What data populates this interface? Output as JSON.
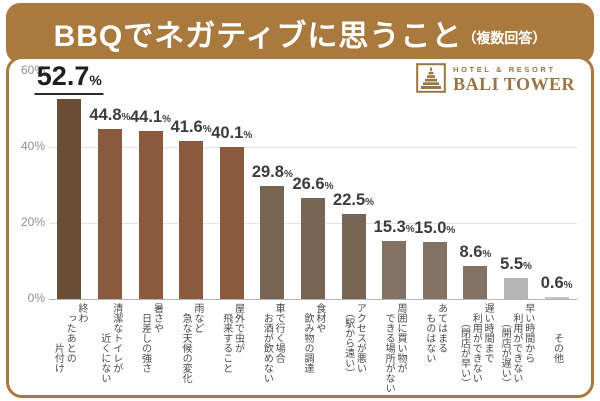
{
  "header": {
    "title": "BBQでネガティブに思うこと",
    "note": "（複数回答）"
  },
  "logo": {
    "tagline": "HOTEL & RESORT",
    "name": "BALI TOWER",
    "color": "#9a7544",
    "icon": "stepped-tower-icon"
  },
  "colors": {
    "banner_brown": "#a9793e",
    "bar_dark_brown": "#6b4c35",
    "bar_medium_brown": "#8a5a3e",
    "bar_taupe": "#786452",
    "bar_light_taupe": "#837264",
    "bar_gray": "#b5b5b4",
    "bar_light_gray": "#c7c4bf"
  },
  "chart_data": {
    "type": "bar",
    "title": "BBQでネガティブに思うこと（複数回答）",
    "unit": "%",
    "ylim": [
      0,
      60
    ],
    "yticks": [
      "0%",
      "20%",
      "40%",
      "60%"
    ],
    "yticks_display": [
      "60%",
      "40%",
      "20%",
      "0%"
    ],
    "grid": "horizontal gridlines at 20% and 40%",
    "legend": "none",
    "categories": [
      "終わったあとの片付け",
      "清潔なトイレが近くにない",
      "暑さや日差しの強さ",
      "雨など急な天候の変化",
      "屋外で虫が飛来すること",
      "車で行く場合お酒が飲めない",
      "食材や飲み物の調達",
      "アクセスが悪い（駅から遠い）",
      "周囲に買い物ができる場所がない",
      "あてはまるものはない",
      "遅い時間まで利用ができない（閉店が早い）",
      "早い時間から利用ができない（開店が遅い）",
      "その他"
    ],
    "values": [
      52.7,
      44.8,
      44.1,
      41.6,
      40.1,
      29.8,
      26.6,
      22.5,
      15.3,
      15.0,
      8.6,
      5.5,
      0.6
    ],
    "bars": [
      {
        "value": "52.7",
        "numeric": 52.7,
        "color": "#6b4c35",
        "emphasis": true,
        "display_label": "終わ\n　ったあとの\n　　　　片付け"
      },
      {
        "value": "44.8",
        "numeric": 44.8,
        "color": "#8a5a3e",
        "emphasis": false,
        "display_label": "清潔なトイレが\n　　　近くにない"
      },
      {
        "value": "44.1",
        "numeric": 44.1,
        "color": "#8a5a3e",
        "emphasis": false,
        "display_label": "暑さや\n　日差しの強さ"
      },
      {
        "value": "41.6",
        "numeric": 41.6,
        "color": "#8a5a3e",
        "emphasis": false,
        "display_label": "雨など\n　急な天候の変化"
      },
      {
        "value": "40.1",
        "numeric": 40.1,
        "color": "#8a5a3e",
        "emphasis": false,
        "display_label": "屋外で虫が\n　飛来すること"
      },
      {
        "value": "29.8",
        "numeric": 29.8,
        "color": "#786452",
        "emphasis": false,
        "display_label": "車で行く場合\n　お酒が飲めない"
      },
      {
        "value": "26.6",
        "numeric": 26.6,
        "color": "#786452",
        "emphasis": false,
        "display_label": "食材や\n　飲み物の調達"
      },
      {
        "value": "22.5",
        "numeric": 22.5,
        "color": "#786452",
        "emphasis": false,
        "display_label": "アクセスが悪い\n　（駅から遠い）"
      },
      {
        "value": "15.3",
        "numeric": 15.3,
        "color": "#837264",
        "emphasis": false,
        "display_label": "周囲に買い物が\n　できる場所がない"
      },
      {
        "value": "15.0",
        "numeric": 15.0,
        "color": "#837264",
        "emphasis": false,
        "display_label": "あてはまる\n　ものはない"
      },
      {
        "value": "8.6",
        "numeric": 8.6,
        "color": "#837264",
        "emphasis": false,
        "display_label": "遅い時間まで\n　利用ができない\n　　（閉店が早い）"
      },
      {
        "value": "5.5",
        "numeric": 5.5,
        "color": "#b5b5b4",
        "emphasis": false,
        "display_label": "早い時間から\n　利用ができない\n　　（開店が遅い）"
      },
      {
        "value": "0.6",
        "numeric": 0.6,
        "color": "#c7c4bf",
        "emphasis": false,
        "display_label": "　　　その他"
      }
    ]
  }
}
